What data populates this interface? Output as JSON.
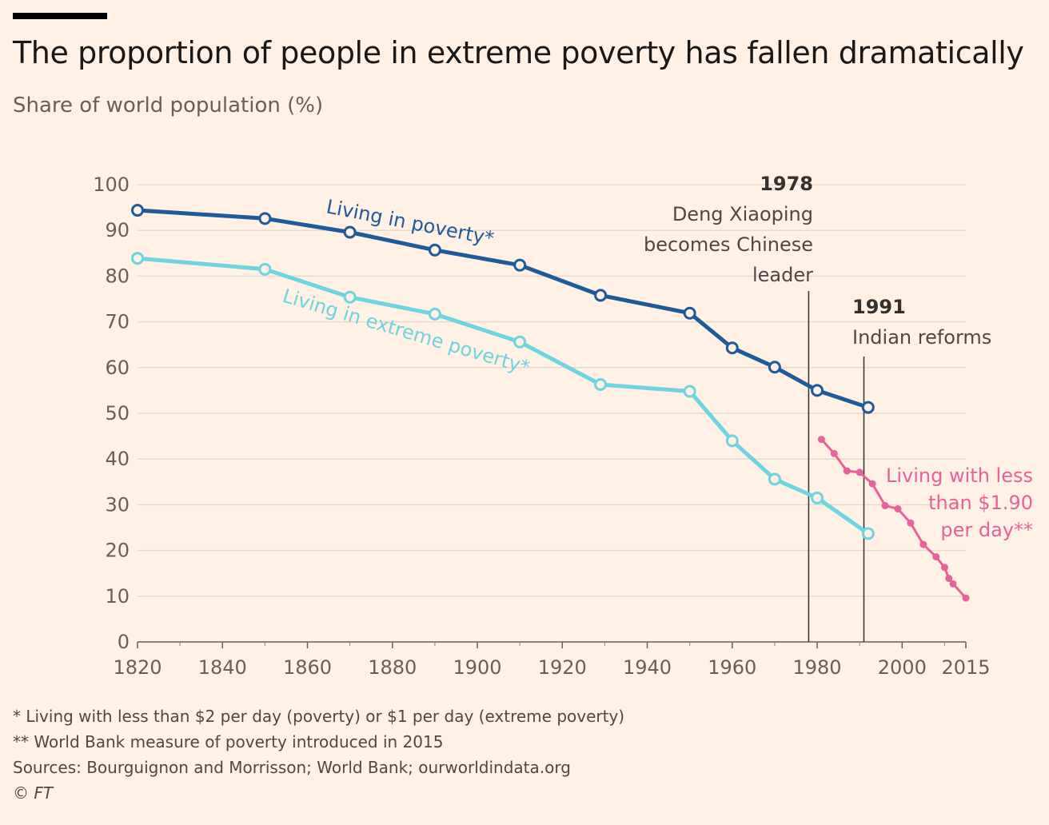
{
  "header": {
    "title": "The proportion of people in extreme poverty has fallen dramatically",
    "subtitle": "Share of world population (%)"
  },
  "chart_data": {
    "type": "line",
    "title": "The proportion of people in extreme poverty has fallen dramatically",
    "subtitle": "Share of world population (%)",
    "xlim": [
      1820,
      2015
    ],
    "ylim": [
      0,
      100
    ],
    "x_ticks": [
      {
        "value": 1820,
        "label": "1820"
      },
      {
        "value": 1840,
        "label": "1840"
      },
      {
        "value": 1860,
        "label": "1860"
      },
      {
        "value": 1880,
        "label": "1880"
      },
      {
        "value": 1900,
        "label": "1900"
      },
      {
        "value": 1920,
        "label": "1920"
      },
      {
        "value": 1940,
        "label": "1940"
      },
      {
        "value": 1960,
        "label": "1960"
      },
      {
        "value": 1980,
        "label": "1980"
      },
      {
        "value": 2000,
        "label": "2000"
      },
      {
        "value": 2015,
        "label": "2015"
      }
    ],
    "x_minor_ticks": [
      1830,
      1850,
      1870,
      1890,
      1910,
      1930,
      1950,
      1970,
      1990,
      2010
    ],
    "y_ticks": [
      {
        "value": 0,
        "label": "0"
      },
      {
        "value": 10,
        "label": "10"
      },
      {
        "value": 20,
        "label": "20"
      },
      {
        "value": 30,
        "label": "30"
      },
      {
        "value": 40,
        "label": "40"
      },
      {
        "value": 50,
        "label": "50"
      },
      {
        "value": 60,
        "label": "60"
      },
      {
        "value": 70,
        "label": "70"
      },
      {
        "value": 80,
        "label": "80"
      },
      {
        "value": 90,
        "label": "90"
      },
      {
        "value": 100,
        "label": "100"
      }
    ],
    "grid": true,
    "series": [
      {
        "name": "Living in poverty*",
        "color": "#1F5A99",
        "marker": "open-circle",
        "points": [
          {
            "x": 1820,
            "y": 94.4
          },
          {
            "x": 1850,
            "y": 92.6
          },
          {
            "x": 1870,
            "y": 89.6
          },
          {
            "x": 1890,
            "y": 85.7
          },
          {
            "x": 1910,
            "y": 82.4
          },
          {
            "x": 1929,
            "y": 75.8
          },
          {
            "x": 1950,
            "y": 71.9
          },
          {
            "x": 1960,
            "y": 64.3
          },
          {
            "x": 1970,
            "y": 60.1
          },
          {
            "x": 1980,
            "y": 55.0
          },
          {
            "x": 1992,
            "y": 51.3
          }
        ]
      },
      {
        "name": "Living in extreme poverty*",
        "color": "#6FD3E0",
        "marker": "open-circle",
        "points": [
          {
            "x": 1820,
            "y": 83.9
          },
          {
            "x": 1850,
            "y": 81.5
          },
          {
            "x": 1870,
            "y": 75.4
          },
          {
            "x": 1890,
            "y": 71.7
          },
          {
            "x": 1910,
            "y": 65.6
          },
          {
            "x": 1929,
            "y": 56.3
          },
          {
            "x": 1950,
            "y": 54.8
          },
          {
            "x": 1960,
            "y": 44.0
          },
          {
            "x": 1970,
            "y": 35.6
          },
          {
            "x": 1980,
            "y": 31.5
          },
          {
            "x": 1992,
            "y": 23.7
          }
        ]
      },
      {
        "name": "Living with less than $1.90 per day**",
        "color": "#E8629A",
        "marker": "dot",
        "points": [
          {
            "x": 1981,
            "y": 44.3
          },
          {
            "x": 1984,
            "y": 41.2
          },
          {
            "x": 1987,
            "y": 37.4
          },
          {
            "x": 1990,
            "y": 37.1
          },
          {
            "x": 1993,
            "y": 34.6
          },
          {
            "x": 1996,
            "y": 29.8
          },
          {
            "x": 1999,
            "y": 29.1
          },
          {
            "x": 2002,
            "y": 26.0
          },
          {
            "x": 2005,
            "y": 21.3
          },
          {
            "x": 2008,
            "y": 18.6
          },
          {
            "x": 2010,
            "y": 16.3
          },
          {
            "x": 2011,
            "y": 13.9
          },
          {
            "x": 2012,
            "y": 12.7
          },
          {
            "x": 2015,
            "y": 9.6
          }
        ]
      }
    ],
    "series_labels": [
      {
        "lines": [
          "Living in poverty*"
        ],
        "color": "#1F5A99"
      },
      {
        "lines": [
          "Living in extreme poverty*"
        ],
        "color": "#6FD3E0"
      },
      {
        "lines": [
          "Living with less",
          "than $1.90",
          "per day**"
        ],
        "color": "#E8629A"
      }
    ],
    "annotations": [
      {
        "x": 1978,
        "year_label": "1978",
        "text_lines": [
          "Deng Xiaoping",
          "becomes Chinese",
          "leader"
        ]
      },
      {
        "x": 1991,
        "year_label": "1991",
        "text_lines": [
          "Indian reforms"
        ]
      }
    ]
  },
  "footnotes": [
    "* Living with less than $2 per day (poverty) or $1 per day (extreme poverty)",
    "** World Bank measure of poverty introduced in 2015",
    "Sources: Bourguignon and Morrisson; World Bank; ourworldindata.org"
  ],
  "copyright": "© FT"
}
